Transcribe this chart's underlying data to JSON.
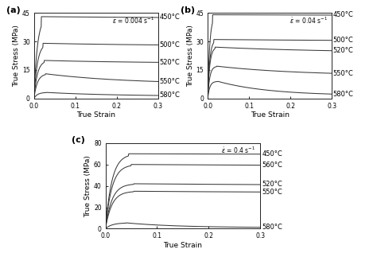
{
  "subplots": [
    {
      "label": "(a)",
      "strain_rate": "$\\dot{\\varepsilon}$ = 0.004 s$^{-1}$",
      "ylim": [
        0,
        45
      ],
      "yticks": [
        0,
        15,
        30,
        45
      ],
      "rise_sharpness": 120,
      "curves": [
        {
          "temp": "450°C",
          "peak_stress": 43.0,
          "steady_stress": 42.0,
          "peak_strain": 0.018,
          "drop_rate": 2.0
        },
        {
          "temp": "500°C",
          "peak_stress": 29.0,
          "steady_stress": 27.5,
          "peak_strain": 0.022,
          "drop_rate": 3.0
        },
        {
          "temp": "520°C",
          "peak_stress": 20.0,
          "steady_stress": 18.5,
          "peak_strain": 0.025,
          "drop_rate": 4.0
        },
        {
          "temp": "550°C",
          "peak_stress": 13.0,
          "steady_stress": 7.5,
          "peak_strain": 0.028,
          "drop_rate": 5.0
        },
        {
          "temp": "580°C",
          "peak_stress": 3.2,
          "steady_stress": 1.2,
          "peak_strain": 0.03,
          "drop_rate": 6.0
        }
      ]
    },
    {
      "label": "(b)",
      "strain_rate": "$\\dot{\\varepsilon}$ = 0.04 s$^{-1}$",
      "ylim": [
        0,
        45
      ],
      "yticks": [
        0,
        15,
        30,
        45
      ],
      "rise_sharpness": 200,
      "curves": [
        {
          "temp": "450°C",
          "peak_stress": 44.0,
          "steady_stress": 43.5,
          "peak_strain": 0.012,
          "drop_rate": 1.5
        },
        {
          "temp": "500°C",
          "peak_stress": 31.0,
          "steady_stress": 30.0,
          "peak_strain": 0.015,
          "drop_rate": 2.0
        },
        {
          "temp": "520°C",
          "peak_stress": 27.0,
          "steady_stress": 24.0,
          "peak_strain": 0.018,
          "drop_rate": 3.5
        },
        {
          "temp": "550°C",
          "peak_stress": 17.0,
          "steady_stress": 12.0,
          "peak_strain": 0.022,
          "drop_rate": 5.0
        },
        {
          "temp": "580°C",
          "peak_stress": 9.0,
          "steady_stress": 1.5,
          "peak_strain": 0.025,
          "drop_rate": 8.0
        }
      ]
    },
    {
      "label": "(c)",
      "strain_rate": "$\\dot{\\varepsilon}$ = 0.4 s$^{-1}$",
      "ylim": [
        0,
        80
      ],
      "yticks": [
        0,
        20,
        40,
        60,
        80
      ],
      "rise_sharpness": 80,
      "curves": [
        {
          "temp": "450°C",
          "peak_stress": 70.0,
          "steady_stress": 68.5,
          "peak_strain": 0.045,
          "drop_rate": 1.0
        },
        {
          "temp": "560°C",
          "peak_stress": 60.0,
          "steady_stress": 58.0,
          "peak_strain": 0.05,
          "drop_rate": 1.5
        },
        {
          "temp": "520°C",
          "peak_stress": 42.0,
          "steady_stress": 40.0,
          "peak_strain": 0.055,
          "drop_rate": 2.0
        },
        {
          "temp": "550°C",
          "peak_stress": 35.0,
          "steady_stress": 33.5,
          "peak_strain": 0.055,
          "drop_rate": 2.5
        },
        {
          "temp": "580°C",
          "peak_stress": 5.5,
          "steady_stress": 1.0,
          "peak_strain": 0.04,
          "drop_rate": 10.0
        }
      ]
    }
  ],
  "xlabel": "True Strain",
  "ylabel": "True Stress (MPa)",
  "xlim": [
    0,
    0.3
  ],
  "xticks": [
    0,
    0.1,
    0.2,
    0.3
  ],
  "background_color": "#ffffff",
  "line_color": "#3a3a3a",
  "fontsize": 6.5
}
